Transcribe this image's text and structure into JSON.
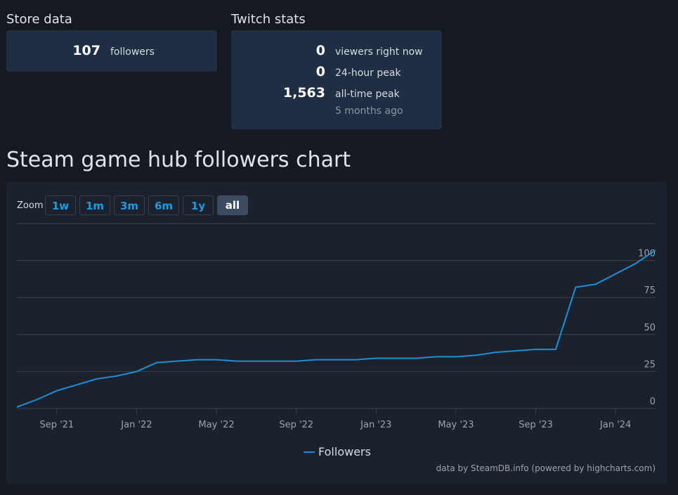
{
  "store": {
    "title": "Store data",
    "value": "107",
    "label": "followers"
  },
  "twitch": {
    "title": "Twitch stats",
    "rows": [
      {
        "value": "0",
        "label": "viewers right now"
      },
      {
        "value": "0",
        "label": "24-hour peak"
      },
      {
        "value": "1,563",
        "label": "all-time peak",
        "note": "5 months ago"
      }
    ]
  },
  "zoom": {
    "label": "Zoom",
    "buttons": [
      "1w",
      "1m",
      "3m",
      "6m",
      "1y",
      "all"
    ],
    "active": "all"
  },
  "chart_data": {
    "type": "line",
    "title": "Steam game hub followers chart",
    "x": [
      "2021-07",
      "2021-08",
      "2021-09",
      "2021-10",
      "2021-11",
      "2021-12",
      "2022-01",
      "2022-02",
      "2022-03",
      "2022-04",
      "2022-05",
      "2022-06",
      "2022-07",
      "2022-08",
      "2022-09",
      "2022-10",
      "2022-11",
      "2022-12",
      "2023-01",
      "2023-02",
      "2023-03",
      "2023-04",
      "2023-05",
      "2023-06",
      "2023-07",
      "2023-08",
      "2023-09",
      "2023-10",
      "2023-11",
      "2023-12",
      "2024-01",
      "2024-02",
      "2024-03"
    ],
    "series": [
      {
        "name": "Followers",
        "color": "#1d8fd6",
        "values": [
          1,
          6,
          12,
          16,
          20,
          22,
          25,
          31,
          32,
          33,
          33,
          32,
          32,
          32,
          32,
          33,
          33,
          33,
          34,
          34,
          34,
          35,
          35,
          36,
          38,
          39,
          40,
          40,
          82,
          84,
          91,
          98,
          107
        ]
      }
    ],
    "xticks": [
      {
        "value": "2021-09",
        "label": "Sep '21"
      },
      {
        "value": "2022-01",
        "label": "Jan '22"
      },
      {
        "value": "2022-05",
        "label": "May '22"
      },
      {
        "value": "2022-09",
        "label": "Sep '22"
      },
      {
        "value": "2023-01",
        "label": "Jan '23"
      },
      {
        "value": "2023-05",
        "label": "May '23"
      },
      {
        "value": "2023-09",
        "label": "Sep '23"
      },
      {
        "value": "2024-01",
        "label": "Jan '24"
      }
    ],
    "ylim": [
      0,
      125
    ],
    "yticks": [
      0,
      25,
      50,
      75,
      100
    ],
    "grid": true,
    "credits": "data by SteamDB.info (powered by highcharts.com)"
  }
}
